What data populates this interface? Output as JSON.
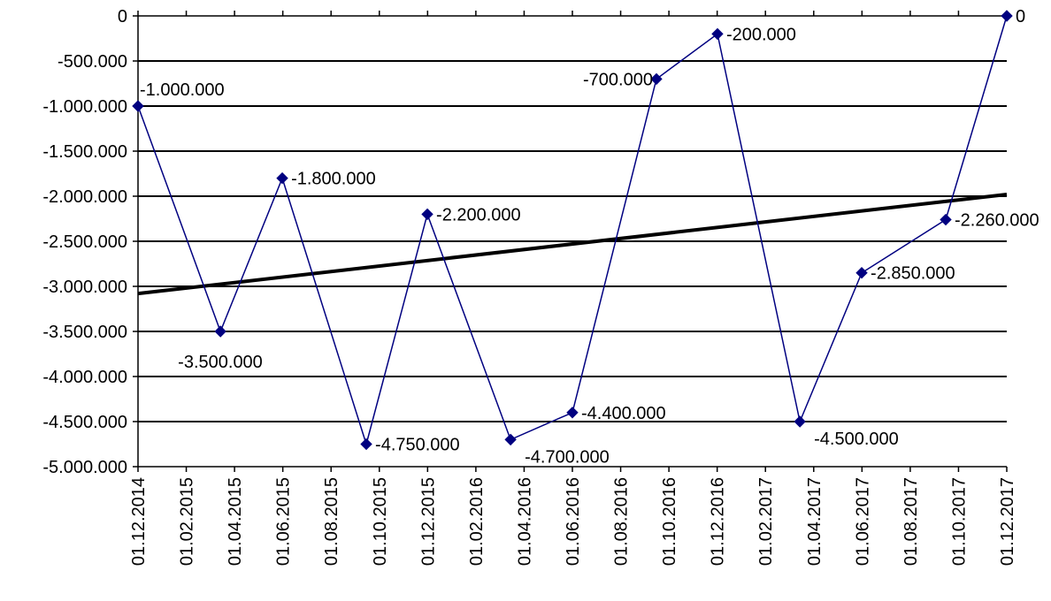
{
  "chart_data": {
    "type": "line",
    "title": "",
    "xlabel": "",
    "ylabel": "",
    "x_axis": {
      "type": "date",
      "min": "2014-12-01",
      "max": "2017-12-01",
      "tick_labels": [
        "01.12.2014",
        "01.02.2015",
        "01.04.2015",
        "01.06.2015",
        "01.08.2015",
        "01.10.2015",
        "01.12.2015",
        "01.02.2016",
        "01.04.2016",
        "01.06.2016",
        "01.08.2016",
        "01.10.2016",
        "01.12.2016",
        "01.02.2017",
        "01.04.2017",
        "01.06.2017",
        "01.08.2017",
        "01.10.2017",
        "01.12.2017"
      ],
      "tick_orientation": "vertical"
    },
    "y_axis": {
      "min": -5000000,
      "max": 0,
      "step": 500000,
      "tick_labels": [
        "0",
        "-500.000",
        "-1.000.000",
        "-1.500.000",
        "-2.000.000",
        "-2.500.000",
        "-3.000.000",
        "-3.500.000",
        "-4.000.000",
        "-4.500.000",
        "-5.000.000"
      ]
    },
    "grid": "horizontal major lines",
    "legend": "none",
    "series": [
      {
        "color": "#000080",
        "marker": "diamond",
        "points": [
          {
            "x": "2014-12-01",
            "y": -1000000,
            "label": "-1.000.000",
            "label_pos": "above-right"
          },
          {
            "x": "2015-03-15",
            "y": -3500000,
            "label": "-3.500.000",
            "label_pos": "below"
          },
          {
            "x": "2015-06-01",
            "y": -1800000,
            "label": "-1.800.000",
            "label_pos": "right"
          },
          {
            "x": "2015-09-15",
            "y": -4750000,
            "label": "-4.750.000",
            "label_pos": "right"
          },
          {
            "x": "2015-12-01",
            "y": -2200000,
            "label": "-2.200.000",
            "label_pos": "right"
          },
          {
            "x": "2016-03-15",
            "y": -4700000,
            "label": "-4.700.000",
            "label_pos": "below-right"
          },
          {
            "x": "2016-06-01",
            "y": -4400000,
            "label": "-4.400.000",
            "label_pos": "right"
          },
          {
            "x": "2016-09-15",
            "y": -700000,
            "label": "-700.000",
            "label_pos": "left"
          },
          {
            "x": "2016-12-01",
            "y": -200000,
            "label": "-200.000",
            "label_pos": "right"
          },
          {
            "x": "2017-03-15",
            "y": -4500000,
            "label": "-4.500.000",
            "label_pos": "below-right"
          },
          {
            "x": "2017-06-01",
            "y": -2850000,
            "label": "-2.850.000",
            "label_pos": "right"
          },
          {
            "x": "2017-09-15",
            "y": -2260000,
            "label": "-2.260.000",
            "label_pos": "right"
          },
          {
            "x": "2017-12-01",
            "y": 0,
            "label": "0",
            "label_pos": "right"
          }
        ]
      }
    ],
    "trendline": {
      "type": "linear",
      "color": "#000000",
      "start": {
        "x": "2014-12-01",
        "y": -3080000
      },
      "end": {
        "x": "2017-12-01",
        "y": -1980000
      }
    }
  }
}
